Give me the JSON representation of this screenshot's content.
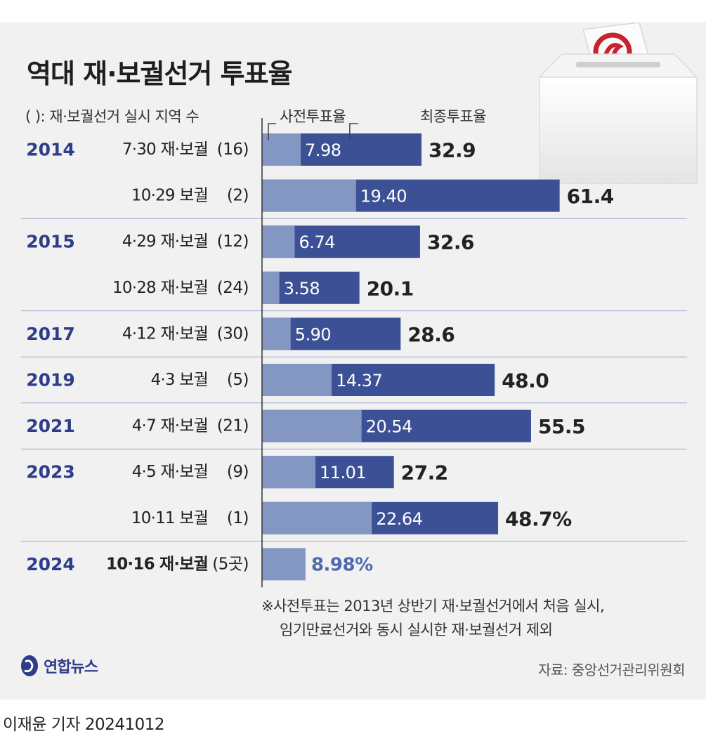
{
  "title": "역대 재·보궐선거 투표율",
  "subtitle": "(  ): 재·보궐선거 실시 지역 수",
  "legend": {
    "early": "사전투표율",
    "final": "최종투표율"
  },
  "colors": {
    "early_bar": "#8496c2",
    "final_bar": "#3c5195",
    "year_text": "#2d3d8a",
    "value_text": "#222222",
    "highlight_value": "#4f68b0",
    "axis": "#333333",
    "separator": "#9aa6cc"
  },
  "chart_data": {
    "type": "bar",
    "orientation": "horizontal",
    "title": "역대 재·보궐선거 투표율",
    "xlim": [
      0,
      80
    ],
    "series": [
      {
        "name": "사전투표율",
        "values": [
          7.98,
          19.4,
          6.74,
          3.58,
          5.9,
          14.37,
          20.54,
          11.01,
          22.64,
          8.98
        ]
      },
      {
        "name": "최종투표율",
        "values": [
          32.9,
          61.4,
          32.6,
          20.1,
          28.6,
          48.0,
          55.5,
          27.2,
          48.7,
          null
        ]
      }
    ],
    "rows": [
      {
        "year": "2014",
        "election": "7·30 재·보궐",
        "regions": "(16)",
        "early": 7.98,
        "early_label": "7.98",
        "final": 32.9,
        "final_label": "32.9",
        "separator_after": false
      },
      {
        "year": "",
        "election": "10·29 보궐",
        "regions": "(2)",
        "early": 19.4,
        "early_label": "19.40",
        "final": 61.4,
        "final_label": "61.4",
        "separator_after": true
      },
      {
        "year": "2015",
        "election": "4·29 재·보궐",
        "regions": "(12)",
        "early": 6.74,
        "early_label": "6.74",
        "final": 32.6,
        "final_label": "32.6",
        "separator_after": false
      },
      {
        "year": "",
        "election": "10·28 재·보궐",
        "regions": "(24)",
        "early": 3.58,
        "early_label": "3.58",
        "final": 20.1,
        "final_label": "20.1",
        "separator_after": true
      },
      {
        "year": "2017",
        "election": "4·12 재·보궐",
        "regions": "(30)",
        "early": 5.9,
        "early_label": "5.90",
        "final": 28.6,
        "final_label": "28.6",
        "separator_after": true
      },
      {
        "year": "2019",
        "election": "4·3 보궐",
        "regions": "(5)",
        "early": 14.37,
        "early_label": "14.37",
        "final": 48.0,
        "final_label": "48.0",
        "separator_after": true
      },
      {
        "year": "2021",
        "election": "4·7 재·보궐",
        "regions": "(21)",
        "early": 20.54,
        "early_label": "20.54",
        "final": 55.5,
        "final_label": "55.5",
        "separator_after": true
      },
      {
        "year": "2023",
        "election": "4·5 재·보궐",
        "regions": "(9)",
        "early": 11.01,
        "early_label": "11.01",
        "final": 27.2,
        "final_label": "27.2",
        "separator_after": false
      },
      {
        "year": "",
        "election": "10·11 보궐",
        "regions": "(1)",
        "early": 22.64,
        "early_label": "22.64",
        "final": 48.7,
        "final_label": "48.7%",
        "separator_after": true
      },
      {
        "year": "2024",
        "election": "10·16 재·보궐",
        "regions": "(5곳)",
        "early": 8.98,
        "early_label": "8.98%",
        "final": null,
        "final_label": "",
        "highlight": true,
        "separator_after": false
      }
    ]
  },
  "footnote": {
    "line1": "※사전투표는 2013년 상반기 재·보궐선거에서 처음 실시,",
    "line2": "임기만료선거와 동시 실시한 재·보궐선거 제외"
  },
  "logo_text": "연합뉴스",
  "source": "자료: 중앙선거관리위원회",
  "byline": "이재윤 기자  20241012"
}
